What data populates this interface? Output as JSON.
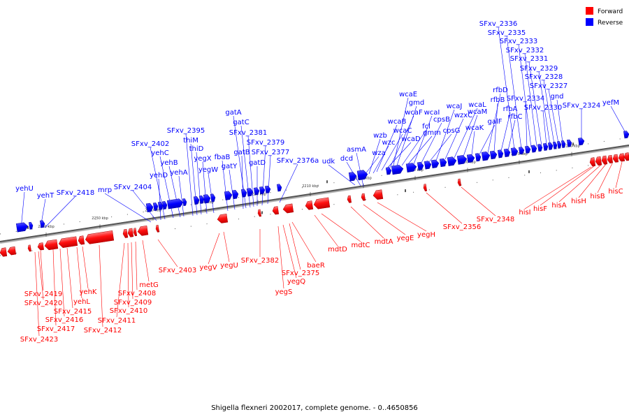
{
  "legend": {
    "forward": {
      "label": "Forward",
      "color": "#ff0000"
    },
    "reverse": {
      "label": "Reverse",
      "color": "#0000ff"
    }
  },
  "caption": "Shigella flexneri 2002017, complete genome. - 0..4650856",
  "axis": {
    "tick_labels": [
      "2160 kbp",
      "2170 kbp",
      "2180 kbp",
      "2190 kbp",
      "2200 kbp",
      "2210 kbp",
      "2220 kbp",
      "2230 kbp",
      "2240 kbp",
      "2250 kbp",
      "2260 kbp"
    ]
  },
  "reverse_labels": [
    "yefM",
    "SFxv_2324",
    "gnd",
    "SFxv_2327",
    "SFxv_2328",
    "SFxv_2329",
    "SFxv_2330",
    "SFxv_2331",
    "SFxv_2332",
    "SFxv_2333",
    "SFxv_2334",
    "SFxv_2335",
    "SFxv_2336",
    "rfbC",
    "rfbA",
    "rfbB",
    "rfbD",
    "galF",
    "wcaK",
    "wcaM",
    "wcaL",
    "wzxC",
    "wcaJ",
    "cpsG",
    "cpsB",
    "wcaI",
    "gmm",
    "fcl",
    "gmd",
    "wcaE",
    "wcaF",
    "wcaD",
    "wcaC",
    "wcaB",
    "wzc",
    "wzb",
    "wza",
    "udk",
    "dcd",
    "asmA",
    "SFxv_2376a",
    "SFxv_2377",
    "SFxv_2379",
    "gatD",
    "SFxv_2381",
    "gatC",
    "gatA",
    "gatB",
    "gatY",
    "fbaB",
    "yegW",
    "yegX",
    "thiD",
    "thiM",
    "SFxv_2395",
    "yehA",
    "yehB",
    "yehC",
    "SFxv_2402",
    "yehD",
    "SFxv_2404",
    "mrp",
    "SFxv_2418",
    "yehT",
    "yehU"
  ],
  "forward_labels": [
    "hisC",
    "hisB",
    "hisH",
    "hisA",
    "hisF",
    "hisI",
    "SFxv_2348",
    "SFxv_2356",
    "yegH",
    "yegE",
    "mdtA",
    "mdtC",
    "mdtD",
    "baeR",
    "SFxv_2375",
    "yegQ",
    "yegS",
    "SFxv_2382",
    "yegU",
    "yegV",
    "SFxv_2403",
    "metG",
    "SFxv_2408",
    "SFxv_2409",
    "SFxv_2410",
    "SFxv_2411",
    "SFxv_2412",
    "yehK",
    "yehL",
    "SFxv_2415",
    "SFxv_2416",
    "SFxv_2417",
    "SFxv_2419",
    "SFxv_2420",
    "SFxv_2423"
  ]
}
